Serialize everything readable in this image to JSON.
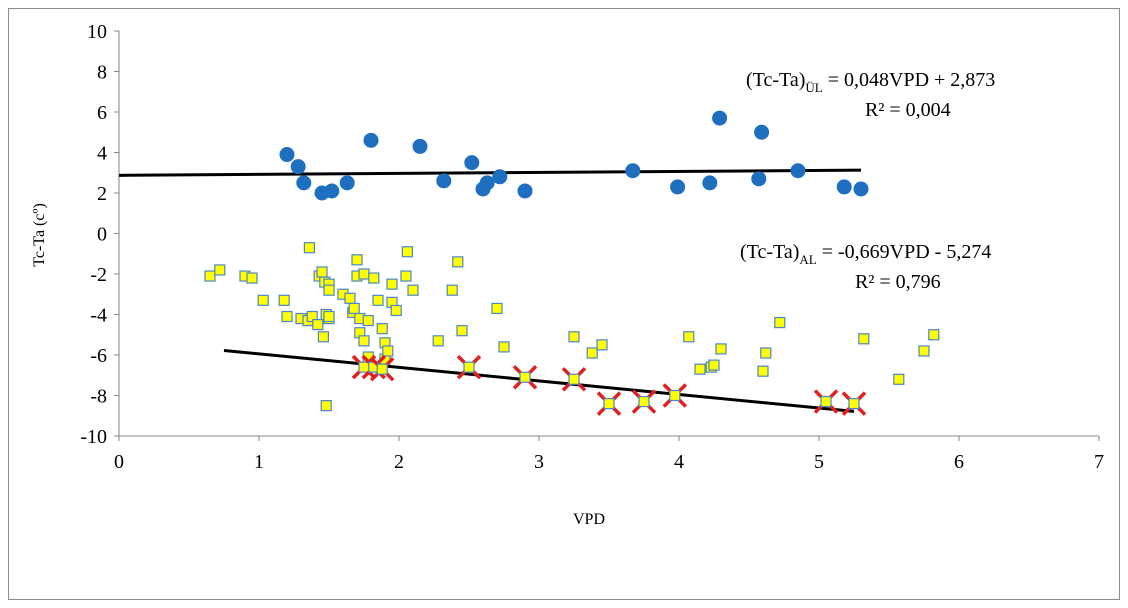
{
  "chart_data": {
    "type": "scatter",
    "xlabel": "VPD",
    "ylabel": "Tc-Ta (cº)",
    "xlim": [
      0,
      7
    ],
    "ylim": [
      -10,
      10
    ],
    "x_ticks": [
      "0",
      "1",
      "2",
      "3",
      "4",
      "5",
      "6",
      "7"
    ],
    "y_ticks": [
      "10",
      "8",
      "6",
      "4",
      "2",
      "0",
      "-2",
      "-4",
      "-6",
      "-8",
      "-10"
    ],
    "grid": false,
    "legend": "none",
    "annotations": [
      {
        "main": "(Tc-Ta)",
        "sub": "ÜL",
        "rest": " = 0,048VPD + 2,873",
        "r2": "R² = 0,004"
      },
      {
        "main": "(Tc-Ta)",
        "sub": "AL",
        "rest": " = -0,669VPD - 5,274",
        "r2": "R² = 0,796"
      }
    ],
    "colors": {
      "upper": "#1f6fc0",
      "lower_fill": "#ffff00",
      "lower_stroke": "#4a86c8",
      "fit": "#000000",
      "cross": "#e02020"
    },
    "series": [
      {
        "marker": "circle",
        "x": [
          1.2,
          1.28,
          1.32,
          1.45,
          1.52,
          1.63,
          1.8,
          2.15,
          2.32,
          2.52,
          2.6,
          2.63,
          2.72,
          2.9,
          3.67,
          3.99,
          4.22,
          4.29,
          4.57,
          4.59,
          4.85,
          5.18,
          5.3
        ],
        "y": [
          3.9,
          3.3,
          2.5,
          2.0,
          2.1,
          2.5,
          4.6,
          4.3,
          2.6,
          3.5,
          2.2,
          2.5,
          2.8,
          2.1,
          3.1,
          2.3,
          2.5,
          5.7,
          2.7,
          5.0,
          3.1,
          2.3,
          2.2
        ]
      },
      {
        "marker": "square",
        "x": [
          0.65,
          0.72,
          0.9,
          0.95,
          1.03,
          1.18,
          1.2,
          1.3,
          1.35,
          1.36,
          1.38,
          1.42,
          1.43,
          1.45,
          1.46,
          1.47,
          1.48,
          1.48,
          1.5,
          1.5,
          1.5,
          1.5,
          1.6,
          1.65,
          1.67,
          1.68,
          1.7,
          1.7,
          1.72,
          1.72,
          1.75,
          1.75,
          1.78,
          1.78,
          1.82,
          1.85,
          1.88,
          1.9,
          1.9,
          1.92,
          1.95,
          1.95,
          1.98,
          2.05,
          2.06,
          2.1,
          2.28,
          2.38,
          2.42,
          2.45,
          2.7,
          2.75,
          3.25,
          3.38,
          3.45,
          4.07,
          4.15,
          4.23,
          4.25,
          4.3,
          4.6,
          4.62,
          4.72,
          5.32,
          5.57,
          5.75,
          5.82
        ],
        "y": [
          -2.1,
          -1.8,
          -2.1,
          -2.2,
          -3.3,
          -3.3,
          -4.1,
          -4.2,
          -4.3,
          -0.7,
          -4.1,
          -4.5,
          -2.1,
          -1.9,
          -5.1,
          -2.4,
          -4.0,
          -8.5,
          -4.2,
          -2.5,
          -2.8,
          -4.1,
          -3.0,
          -3.2,
          -3.9,
          -3.7,
          -2.1,
          -1.3,
          -4.9,
          -4.2,
          -2.0,
          -5.3,
          -4.3,
          -6.1,
          -2.2,
          -3.3,
          -4.7,
          -5.4,
          -6.2,
          -5.8,
          -2.5,
          -3.4,
          -3.8,
          -2.1,
          -0.9,
          -2.8,
          -5.3,
          -2.8,
          -1.4,
          -4.8,
          -3.7,
          -5.6,
          -5.1,
          -5.9,
          -5.5,
          -5.1,
          -6.7,
          -6.6,
          -6.5,
          -5.7,
          -6.8,
          -5.9,
          -4.4,
          -5.2,
          -7.2,
          -5.8,
          -5.0
        ]
      },
      {
        "marker": "square-crossed",
        "x": [
          1.75,
          1.82,
          1.88,
          2.5,
          2.9,
          3.25,
          3.5,
          3.75,
          3.97,
          5.05,
          5.25
        ],
        "y": [
          -6.6,
          -6.6,
          -6.7,
          -6.6,
          -7.1,
          -7.2,
          -8.4,
          -8.3,
          -8.0,
          -8.3,
          -8.4
        ]
      }
    ],
    "fit_lines": [
      {
        "x": [
          0,
          5.3
        ],
        "y": [
          2.873,
          3.127
        ]
      },
      {
        "x": [
          0.75,
          5.25
        ],
        "y": [
          -5.776,
          -8.786
        ]
      }
    ]
  }
}
